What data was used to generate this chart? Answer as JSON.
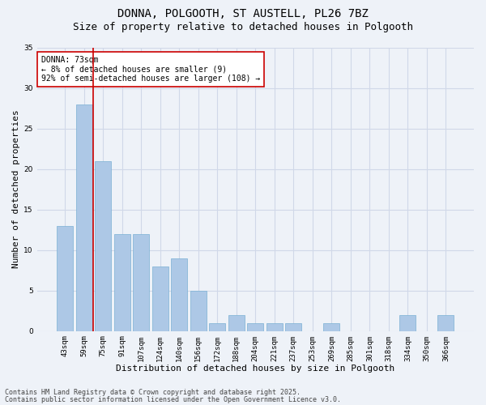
{
  "title1": "DONNA, POLGOOTH, ST AUSTELL, PL26 7BZ",
  "title2": "Size of property relative to detached houses in Polgooth",
  "xlabel": "Distribution of detached houses by size in Polgooth",
  "ylabel": "Number of detached properties",
  "categories": [
    "43sqm",
    "59sqm",
    "75sqm",
    "91sqm",
    "107sqm",
    "124sqm",
    "140sqm",
    "156sqm",
    "172sqm",
    "188sqm",
    "204sqm",
    "221sqm",
    "237sqm",
    "253sqm",
    "269sqm",
    "285sqm",
    "301sqm",
    "318sqm",
    "334sqm",
    "350sqm",
    "366sqm"
  ],
  "values": [
    13,
    28,
    21,
    12,
    12,
    8,
    9,
    5,
    1,
    2,
    1,
    1,
    1,
    0,
    1,
    0,
    0,
    0,
    2,
    0,
    2
  ],
  "bar_color": "#adc8e6",
  "bar_edge_color": "#7ab0d4",
  "grid_color": "#d0d8e8",
  "background_color": "#eef2f8",
  "vline_color": "#cc0000",
  "vline_x": 1.5,
  "annotation_text": "DONNA: 73sqm\n← 8% of detached houses are smaller (9)\n92% of semi-detached houses are larger (108) →",
  "annotation_box_color": "#ffffff",
  "annotation_box_edge": "#cc0000",
  "ylim": [
    0,
    35
  ],
  "yticks": [
    0,
    5,
    10,
    15,
    20,
    25,
    30,
    35
  ],
  "footer1": "Contains HM Land Registry data © Crown copyright and database right 2025.",
  "footer2": "Contains public sector information licensed under the Open Government Licence v3.0.",
  "title_fontsize": 10,
  "subtitle_fontsize": 9,
  "axis_label_fontsize": 8,
  "tick_fontsize": 6.5,
  "annotation_fontsize": 7,
  "footer_fontsize": 6
}
